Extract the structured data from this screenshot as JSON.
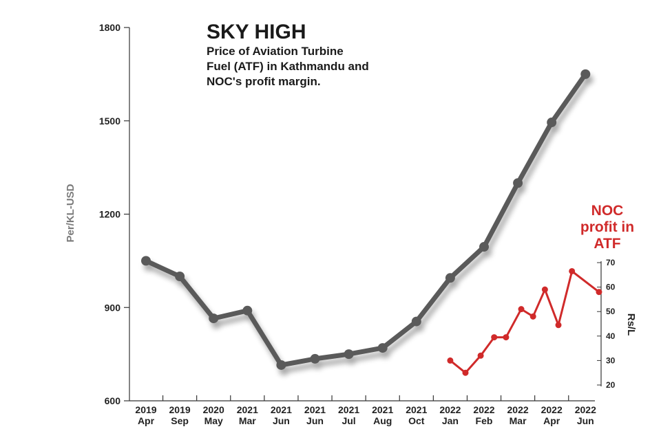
{
  "chart_data": {
    "type": "line",
    "title": "SKY HIGH",
    "subtitle_lines": [
      "Price of Aviation Turbine",
      "Fuel (ATF) in Kathmandu and",
      "NOC's profit margin."
    ],
    "ylabel": "Per/KL-USD",
    "ylim": [
      600,
      1800
    ],
    "yticks": [
      "1800",
      "1500",
      "1200",
      "900",
      "600"
    ],
    "y2label": "Rs/L",
    "y2lim": [
      20,
      70
    ],
    "y2ticks": [
      "70",
      "60",
      "50",
      "40",
      "30",
      "20"
    ],
    "x_categories": [
      {
        "year": "2019",
        "month": "Apr"
      },
      {
        "year": "2019",
        "month": "Sep"
      },
      {
        "year": "2020",
        "month": "May"
      },
      {
        "year": "2021",
        "month": "Mar"
      },
      {
        "year": "2021",
        "month": "Jun"
      },
      {
        "year": "2021",
        "month": "Jun"
      },
      {
        "year": "2021",
        "month": "Jul"
      },
      {
        "year": "2021",
        "month": "Aug"
      },
      {
        "year": "2021",
        "month": "Oct"
      },
      {
        "year": "2022",
        "month": "Jan"
      },
      {
        "year": "2022",
        "month": "Feb"
      },
      {
        "year": "2022",
        "month": "Mar"
      },
      {
        "year": "2022",
        "month": "Apr"
      },
      {
        "year": "2022",
        "month": "Jun"
      }
    ],
    "series": [
      {
        "axis": "left",
        "color": "#5a5a5a",
        "points": [
          {
            "x": 0,
            "y": 1050
          },
          {
            "x": 1,
            "y": 1000
          },
          {
            "x": 2,
            "y": 865
          },
          {
            "x": 3,
            "y": 890
          },
          {
            "x": 4,
            "y": 715
          },
          {
            "x": 5,
            "y": 735
          },
          {
            "x": 6,
            "y": 750
          },
          {
            "x": 7,
            "y": 770
          },
          {
            "x": 8,
            "y": 855
          },
          {
            "x": 9,
            "y": 995
          },
          {
            "x": 10,
            "y": 1095
          },
          {
            "x": 11,
            "y": 1300
          },
          {
            "x": 12,
            "y": 1495
          },
          {
            "x": 13,
            "y": 1650
          }
        ]
      },
      {
        "name": "NOC profit in ATF",
        "name_lines": [
          "NOC",
          "profit in",
          "ATF"
        ],
        "axis": "right",
        "color": "#d02a2a",
        "points": [
          {
            "x": 9,
            "y": 30
          },
          {
            "x": 9.45,
            "y": 25
          },
          {
            "x": 9.9,
            "y": 32
          },
          {
            "x": 10.3,
            "y": 39.5
          },
          {
            "x": 10.65,
            "y": 39.5
          },
          {
            "x": 11.1,
            "y": 51
          },
          {
            "x": 11.45,
            "y": 48
          },
          {
            "x": 11.8,
            "y": 59
          },
          {
            "x": 12.2,
            "y": 44.5
          },
          {
            "x": 12.6,
            "y": 66.5
          },
          {
            "x": 13.4,
            "y": 58
          }
        ]
      }
    ],
    "grid": false
  }
}
